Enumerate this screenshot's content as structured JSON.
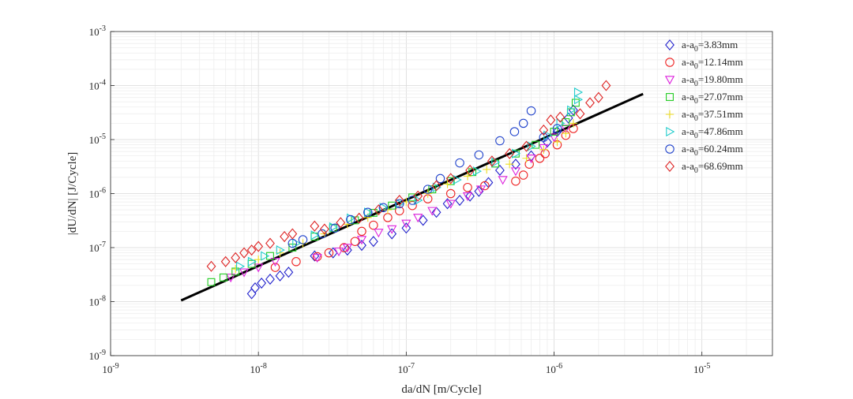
{
  "chart_data": {
    "type": "scatter",
    "xscale": "log",
    "yscale": "log",
    "xlim": [
      1e-09,
      3e-05
    ],
    "ylim": [
      1e-09,
      0.001
    ],
    "grid": true,
    "minor_grid": true,
    "legend_position": "top-right",
    "xlabel": "da/dN [m/Cycle]",
    "ylabel": "|dU/dN| [J/Cycle]",
    "xticks": [
      {
        "value": 1e-09,
        "base": "10",
        "exp": "-9"
      },
      {
        "value": 1e-08,
        "base": "10",
        "exp": "-8"
      },
      {
        "value": 1e-07,
        "base": "10",
        "exp": "-7"
      },
      {
        "value": 1e-06,
        "base": "10",
        "exp": "-6"
      },
      {
        "value": 1e-05,
        "base": "10",
        "exp": "-5"
      }
    ],
    "yticks": [
      {
        "value": 1e-09,
        "base": "10",
        "exp": "-9"
      },
      {
        "value": 1e-08,
        "base": "10",
        "exp": "-8"
      },
      {
        "value": 1e-07,
        "base": "10",
        "exp": "-7"
      },
      {
        "value": 1e-06,
        "base": "10",
        "exp": "-6"
      },
      {
        "value": 1e-05,
        "base": "10",
        "exp": "-5"
      },
      {
        "value": 0.0001,
        "base": "10",
        "exp": "-4"
      },
      {
        "value": 0.001,
        "base": "10",
        "exp": "-3"
      }
    ],
    "fit_line": {
      "x": [
        3e-09,
        4e-06
      ],
      "y": [
        1.05e-08,
        7e-05
      ],
      "color": "#000000"
    },
    "series": [
      {
        "name": "a-a0=3.83mm",
        "legend_prefix": "a-a",
        "legend_sub": "0",
        "legend_suffix": "=3.83mm",
        "marker": "diamond",
        "color": "#2222cc",
        "points": [
          [
            9e-09,
            1.4e-08
          ],
          [
            9.5e-09,
            1.8e-08
          ],
          [
            1.05e-08,
            2.2e-08
          ],
          [
            1.2e-08,
            2.6e-08
          ],
          [
            1.4e-08,
            3e-08
          ],
          [
            1.6e-08,
            3.5e-08
          ],
          [
            2.4e-08,
            7e-08
          ],
          [
            3.2e-08,
            8e-08
          ],
          [
            4e-08,
            9e-08
          ],
          [
            5e-08,
            1.1e-07
          ],
          [
            6e-08,
            1.3e-07
          ],
          [
            8e-08,
            1.8e-07
          ],
          [
            1e-07,
            2.3e-07
          ],
          [
            1.3e-07,
            3.2e-07
          ],
          [
            1.6e-07,
            4.5e-07
          ],
          [
            1.9e-07,
            6.5e-07
          ],
          [
            2.3e-07,
            7.5e-07
          ],
          [
            2.7e-07,
            9e-07
          ],
          [
            3.1e-07,
            1.1e-06
          ],
          [
            3.6e-07,
            1.6e-06
          ],
          [
            4.3e-07,
            2.7e-06
          ],
          [
            5.5e-07,
            3.5e-06
          ],
          [
            7e-07,
            5e-06
          ],
          [
            9e-07,
            9e-06
          ],
          [
            1.05e-06,
            1.4e-05
          ],
          [
            1.25e-06,
            2.5e-05
          ],
          [
            1.35e-06,
            3.5e-05
          ]
        ]
      },
      {
        "name": "a-a0=12.14mm",
        "legend_prefix": "a-a",
        "legend_sub": "0",
        "legend_suffix": "=12.14mm",
        "marker": "circle",
        "color": "#ee2222",
        "points": [
          [
            1.3e-08,
            4.3e-08
          ],
          [
            1.8e-08,
            5.5e-08
          ],
          [
            2.5e-08,
            6.8e-08
          ],
          [
            3e-08,
            8e-08
          ],
          [
            3.8e-08,
            1e-07
          ],
          [
            4.5e-08,
            1.3e-07
          ],
          [
            5e-08,
            2e-07
          ],
          [
            6e-08,
            2.6e-07
          ],
          [
            7.5e-08,
            3.6e-07
          ],
          [
            9e-08,
            4.8e-07
          ],
          [
            1.1e-07,
            6e-07
          ],
          [
            1.4e-07,
            8e-07
          ],
          [
            2e-07,
            1e-06
          ],
          [
            2.6e-07,
            1.3e-06
          ],
          [
            3.4e-07,
            1.4e-06
          ],
          [
            5.5e-07,
            1.7e-06
          ],
          [
            6.2e-07,
            2.2e-06
          ],
          [
            6.8e-07,
            3.5e-06
          ],
          [
            8e-07,
            4.5e-06
          ],
          [
            8.7e-07,
            5.5e-06
          ],
          [
            1.05e-06,
            8e-06
          ],
          [
            1.2e-06,
            1.2e-05
          ],
          [
            1.35e-06,
            1.6e-05
          ]
        ]
      },
      {
        "name": "a-a0=19.80mm",
        "legend_prefix": "a-a",
        "legend_sub": "0",
        "legend_suffix": "=19.80mm",
        "marker": "triangle-down",
        "color": "#dd22dd",
        "points": [
          [
            6.5e-09,
            2.8e-08
          ],
          [
            8e-09,
            3.5e-08
          ],
          [
            1e-08,
            4.3e-08
          ],
          [
            1.3e-08,
            5.5e-08
          ],
          [
            2.5e-08,
            6.5e-08
          ],
          [
            3.5e-08,
            8.5e-08
          ],
          [
            4e-08,
            1e-07
          ],
          [
            5e-08,
            1.4e-07
          ],
          [
            6.5e-08,
            1.9e-07
          ],
          [
            8e-08,
            2.2e-07
          ],
          [
            1e-07,
            2.8e-07
          ],
          [
            1.2e-07,
            3.6e-07
          ],
          [
            1.5e-07,
            4.8e-07
          ],
          [
            2e-07,
            6.5e-07
          ],
          [
            2.6e-07,
            9e-07
          ],
          [
            3.2e-07,
            1.2e-06
          ],
          [
            4.5e-07,
            1.8e-06
          ],
          [
            5.5e-07,
            2.6e-06
          ],
          [
            7e-07,
            4.5e-06
          ],
          [
            8.5e-07,
            7e-06
          ],
          [
            1e-06,
            1.1e-05
          ],
          [
            1.2e-06,
            1.6e-05
          ]
        ]
      },
      {
        "name": "a-a0=27.07mm",
        "legend_prefix": "a-a",
        "legend_sub": "0",
        "legend_suffix": "=27.07mm",
        "marker": "square",
        "color": "#22cc22",
        "points": [
          [
            4.8e-09,
            2.3e-08
          ],
          [
            5.8e-09,
            2.8e-08
          ],
          [
            7e-09,
            3.6e-08
          ],
          [
            9e-09,
            5e-08
          ],
          [
            1.2e-08,
            7e-08
          ],
          [
            1.7e-08,
            1e-07
          ],
          [
            2.4e-08,
            1.6e-07
          ],
          [
            3.2e-08,
            2.3e-07
          ],
          [
            4.5e-08,
            3.2e-07
          ],
          [
            6e-08,
            4.4e-07
          ],
          [
            8e-08,
            6e-07
          ],
          [
            1.1e-07,
            8.5e-07
          ],
          [
            1.5e-07,
            1.2e-06
          ],
          [
            2e-07,
            1.7e-06
          ],
          [
            2.8e-07,
            2.5e-06
          ],
          [
            4e-07,
            3.6e-06
          ],
          [
            5.5e-07,
            5.5e-06
          ],
          [
            7.5e-07,
            8e-06
          ],
          [
            1e-06,
            1.4e-05
          ],
          [
            1.2e-06,
            2.1e-05
          ],
          [
            1.3e-06,
            3.2e-05
          ],
          [
            1.4e-06,
            4.8e-05
          ]
        ]
      },
      {
        "name": "a-a0=37.51mm",
        "legend_prefix": "a-a",
        "legend_sub": "0",
        "legend_suffix": "=37.51mm",
        "marker": "plus",
        "color": "#eedd22",
        "points": [
          [
            7e-09,
            4e-08
          ],
          [
            1e-08,
            6e-08
          ],
          [
            1.4e-08,
            8e-08
          ],
          [
            2e-08,
            1.2e-07
          ],
          [
            2.8e-08,
            1.8e-07
          ],
          [
            4e-08,
            2.7e-07
          ],
          [
            5.5e-08,
            3.6e-07
          ],
          [
            7.5e-08,
            5e-07
          ],
          [
            1e-07,
            7e-07
          ],
          [
            1.4e-07,
            1e-06
          ],
          [
            1.9e-07,
            1.5e-06
          ],
          [
            2.6e-07,
            2.1e-06
          ],
          [
            3.5e-07,
            2.8e-06
          ],
          [
            5e-07,
            3.5e-06
          ],
          [
            6.5e-07,
            4.5e-06
          ],
          [
            8.5e-07,
            6.5e-06
          ],
          [
            1.05e-06,
            9e-06
          ],
          [
            1.2e-06,
            1.3e-05
          ],
          [
            1.35e-06,
            2e-05
          ]
        ]
      },
      {
        "name": "a-a0=47.86mm",
        "legend_prefix": "a-a",
        "legend_sub": "0",
        "legend_suffix": "=47.86mm",
        "marker": "triangle-right",
        "color": "#22cccc",
        "points": [
          [
            7.5e-09,
            4.5e-08
          ],
          [
            9e-09,
            5.5e-08
          ],
          [
            1.1e-08,
            7e-08
          ],
          [
            1.4e-08,
            9e-08
          ],
          [
            1.8e-08,
            1.2e-07
          ],
          [
            2.4e-08,
            1.7e-07
          ],
          [
            3.2e-08,
            2.4e-07
          ],
          [
            4.2e-08,
            3.5e-07
          ],
          [
            5.5e-08,
            4.5e-07
          ],
          [
            7e-08,
            5.5e-07
          ],
          [
            9e-08,
            6.5e-07
          ],
          [
            1.2e-07,
            7.5e-07
          ],
          [
            1.6e-07,
            1.3e-06
          ],
          [
            2.2e-07,
            1.8e-06
          ],
          [
            3e-07,
            2.6e-06
          ],
          [
            4e-07,
            3.8e-06
          ],
          [
            5.5e-07,
            5.5e-06
          ],
          [
            7e-07,
            7.5e-06
          ],
          [
            9e-07,
            1.2e-05
          ],
          [
            1.1e-06,
            2e-05
          ],
          [
            1.3e-06,
            3.5e-05
          ],
          [
            1.45e-06,
            5.5e-05
          ],
          [
            1.45e-06,
            7.5e-05
          ]
        ]
      },
      {
        "name": "a-a0=60.24mm",
        "legend_prefix": "a-a",
        "legend_sub": "0",
        "legend_suffix": "=60.24mm",
        "marker": "circle",
        "color": "#2244cc",
        "points": [
          [
            1.7e-08,
            1.2e-07
          ],
          [
            2e-08,
            1.4e-07
          ],
          [
            2.7e-08,
            1.8e-07
          ],
          [
            3.3e-08,
            2.3e-07
          ],
          [
            4.2e-08,
            3.3e-07
          ],
          [
            5.5e-08,
            4.5e-07
          ],
          [
            7e-08,
            5.5e-07
          ],
          [
            9e-08,
            6.5e-07
          ],
          [
            1.1e-07,
            7.5e-07
          ],
          [
            1.4e-07,
            1.2e-06
          ],
          [
            1.7e-07,
            1.9e-06
          ],
          [
            2.3e-07,
            3.7e-06
          ],
          [
            3.1e-07,
            5.2e-06
          ],
          [
            4.3e-07,
            9.5e-06
          ],
          [
            5.4e-07,
            1.4e-05
          ],
          [
            6.2e-07,
            2e-05
          ],
          [
            7e-07,
            3.4e-05
          ],
          [
            8.5e-07,
            1.1e-05
          ],
          [
            1.05e-06,
            1.6e-05
          ]
        ]
      },
      {
        "name": "a-a0=68.69mm",
        "legend_prefix": "a-a",
        "legend_sub": "0",
        "legend_suffix": "=68.69mm",
        "marker": "diamond",
        "color": "#dd2222",
        "points": [
          [
            4.8e-09,
            4.5e-08
          ],
          [
            6e-09,
            5.5e-08
          ],
          [
            7e-09,
            6.5e-08
          ],
          [
            8e-09,
            8e-08
          ],
          [
            9e-09,
            9e-08
          ],
          [
            1e-08,
            1.05e-07
          ],
          [
            1.2e-08,
            1.2e-07
          ],
          [
            1.5e-08,
            1.6e-07
          ],
          [
            1.7e-08,
            1.8e-07
          ],
          [
            2.4e-08,
            2.5e-07
          ],
          [
            2.8e-08,
            2.2e-07
          ],
          [
            3.6e-08,
            2.9e-07
          ],
          [
            4.8e-08,
            3.5e-07
          ],
          [
            6.5e-08,
            5e-07
          ],
          [
            9e-08,
            7.5e-07
          ],
          [
            1.2e-07,
            9e-07
          ],
          [
            1.6e-07,
            1.4e-06
          ],
          [
            2e-07,
            1.9e-06
          ],
          [
            2.7e-07,
            2.7e-06
          ],
          [
            3.8e-07,
            4e-06
          ],
          [
            5e-07,
            5.5e-06
          ],
          [
            6.5e-07,
            7.5e-06
          ],
          [
            8.5e-07,
            1.5e-05
          ],
          [
            9.5e-07,
            2.3e-05
          ],
          [
            1.1e-06,
            2.6e-05
          ],
          [
            1.5e-06,
            3e-05
          ],
          [
            1.75e-06,
            4.8e-05
          ],
          [
            2e-06,
            6e-05
          ],
          [
            2.25e-06,
            0.0001
          ]
        ]
      }
    ]
  }
}
